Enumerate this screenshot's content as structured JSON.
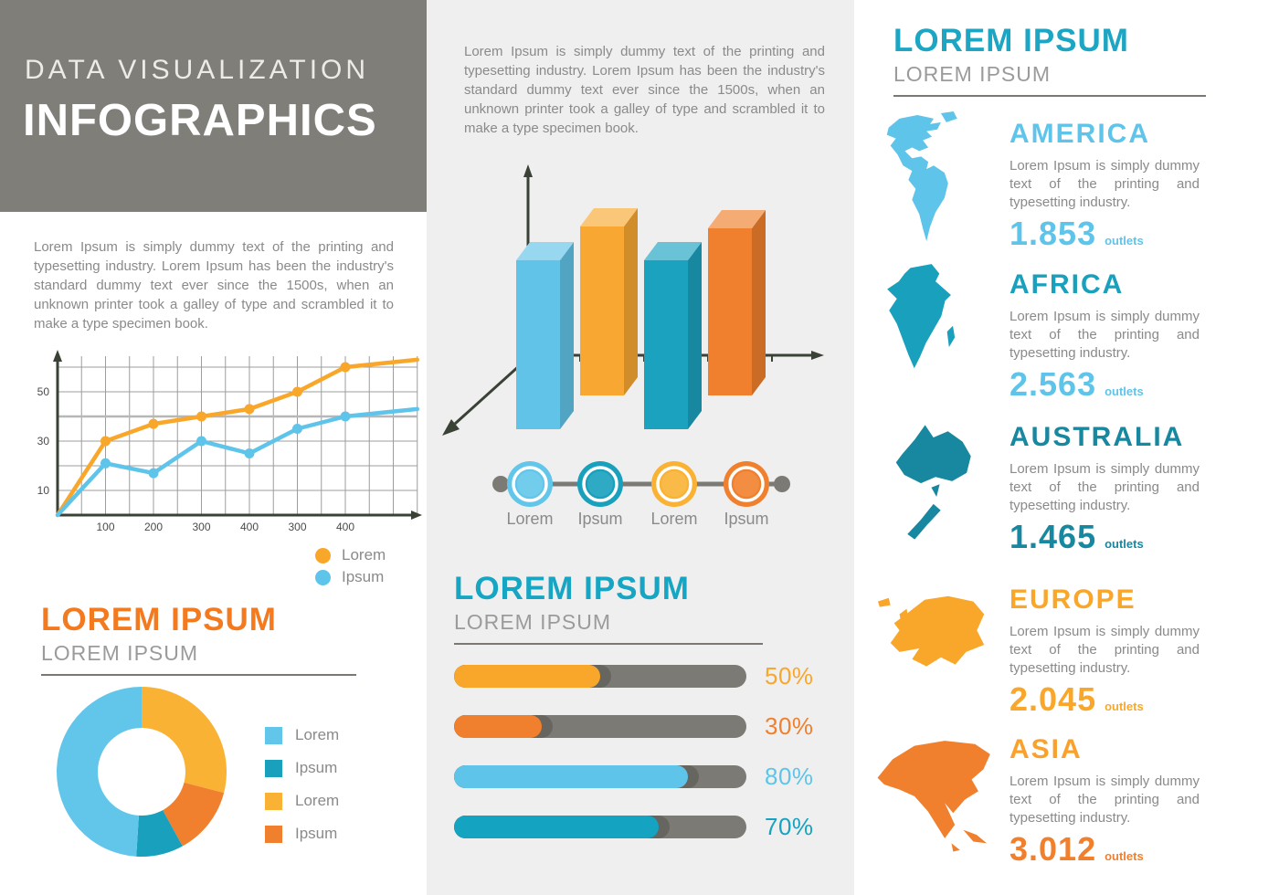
{
  "header": {
    "title_line1": "DATA VISUALIZATION",
    "title_line2": "INFOGRAPHICS"
  },
  "lorem_paragraph": "Lorem Ipsum is simply dummy text of the printing and typesetting industry. Lorem Ipsum has been the industry's standard dummy text ever since the 1500s, when an unknown printer took a galley of type and scrambled it to make a type specimen book.",
  "left_section": {
    "heading": "LOREM IPSUM",
    "subheading": "LOREM IPSUM",
    "heading_color": "#f47a20"
  },
  "middle_section": {
    "heading": "LOREM IPSUM",
    "subheading": "LOREM IPSUM",
    "heading_color": "#16a5c3"
  },
  "right_section": {
    "heading": "LOREM IPSUM",
    "subheading": "LOREM IPSUM",
    "heading_color": "#1ca6c4"
  },
  "colors": {
    "header_bg": "#807e78",
    "middle_column_bg": "#efeff0",
    "track_gray": "#7c7a74",
    "axis_dark": "#3a4135",
    "text_gray": "#8a8a8a"
  },
  "chart_data": [
    {
      "id": "line-chart",
      "type": "line",
      "title": "",
      "xlabel": "",
      "ylabel": "",
      "x_tick_labels": [
        "100",
        "200",
        "300",
        "400",
        "300",
        "400"
      ],
      "y_tick_labels": [
        "10",
        "30",
        "50"
      ],
      "ylim": [
        0,
        65
      ],
      "grid": true,
      "highlight_gridline_value": 40,
      "legend_position": "bottom-right",
      "series": [
        {
          "name": "Lorem",
          "color": "#f9a72b",
          "start_value": 0,
          "values_at_ticks": [
            30,
            37,
            40,
            43,
            50,
            60
          ],
          "end_value": 63
        },
        {
          "name": "Ipsum",
          "color": "#5fc4e9",
          "start_value": 0,
          "values_at_ticks": [
            21,
            17,
            30,
            25,
            35,
            40
          ],
          "end_value": 43
        }
      ]
    },
    {
      "id": "bar3d-chart",
      "type": "bar",
      "style": "3d",
      "values_shown": false,
      "bars": [
        {
          "color": "#62c3e8",
          "row": "front"
        },
        {
          "color": "#f8a832",
          "row": "back"
        },
        {
          "color": "#1ba2bf",
          "row": "front"
        },
        {
          "color": "#f0802d",
          "row": "back"
        }
      ]
    },
    {
      "id": "donut-chart",
      "type": "pie",
      "donut": true,
      "slices_clockwise_from_top": [
        {
          "label": "Lorem",
          "color": "#f9b233",
          "value": 29
        },
        {
          "label": "Ipsum",
          "color": "#f0802d",
          "value": 13
        },
        {
          "label": "Ipsum",
          "color": "#18a0bd",
          "value": 9
        },
        {
          "label": "Lorem",
          "color": "#62c6ea",
          "value": 49
        }
      ],
      "legend": [
        {
          "label": "Lorem",
          "color": "#62c6ea"
        },
        {
          "label": "Ipsum",
          "color": "#18a0bd"
        },
        {
          "label": "Lorem",
          "color": "#f9b233"
        },
        {
          "label": "Ipsum",
          "color": "#f0802d"
        }
      ]
    },
    {
      "id": "progress-bars",
      "type": "bar",
      "orientation": "horizontal",
      "items": [
        {
          "label": "50%",
          "value": 50,
          "color": "#f9a72b"
        },
        {
          "label": "30%",
          "value": 30,
          "color": "#f0802d"
        },
        {
          "label": "80%",
          "value": 80,
          "color": "#5fc4e9"
        },
        {
          "label": "70%",
          "value": 70,
          "color": "#14a3c0"
        }
      ]
    }
  ],
  "timeline": {
    "items": [
      {
        "label": "Lorem",
        "color": "#62c6ea"
      },
      {
        "label": "Ipsum",
        "color": "#18a0bd"
      },
      {
        "label": "Lorem",
        "color": "#f9b233"
      },
      {
        "label": "Ipsum",
        "color": "#f0802d"
      }
    ],
    "line_color": "#7c7a74"
  },
  "continents": [
    {
      "name": "AMERICA",
      "title_color": "#5fc4e9",
      "map_color": "#5fc4e9",
      "description": "Lorem Ipsum is simply dummy text of the printing and typesetting industry.",
      "value": "1.853",
      "unit": "outlets",
      "value_color": "#5fc4e9"
    },
    {
      "name": "AFRICA",
      "title_color": "#18a0bd",
      "map_color": "#18a0bd",
      "description": "Lorem Ipsum is simply dummy text of the printing and typesetting industry.",
      "value": "2.563",
      "unit": "outlets",
      "value_color": "#5fc4e9"
    },
    {
      "name": "AUSTRALIA",
      "title_color": "#17889f",
      "map_color": "#17889f",
      "description": "Lorem Ipsum is simply dummy text of the printing and typesetting industry.",
      "value": "1.465",
      "unit": "outlets",
      "value_color": "#17889f"
    },
    {
      "name": "EUROPE",
      "title_color": "#f9a72b",
      "map_color": "#f9a72b",
      "description": "Lorem Ipsum is simply dummy text of the printing and typesetting industry.",
      "value": "2.045",
      "unit": "outlets",
      "value_color": "#f9a72b"
    },
    {
      "name": "ASIA",
      "title_color": "#f9a12b",
      "map_color": "#f0802d",
      "description": "Lorem Ipsum is simply dummy text of the printing and typesetting industry.",
      "value": "3.012",
      "unit": "outlets",
      "value_color": "#f0802d"
    }
  ]
}
